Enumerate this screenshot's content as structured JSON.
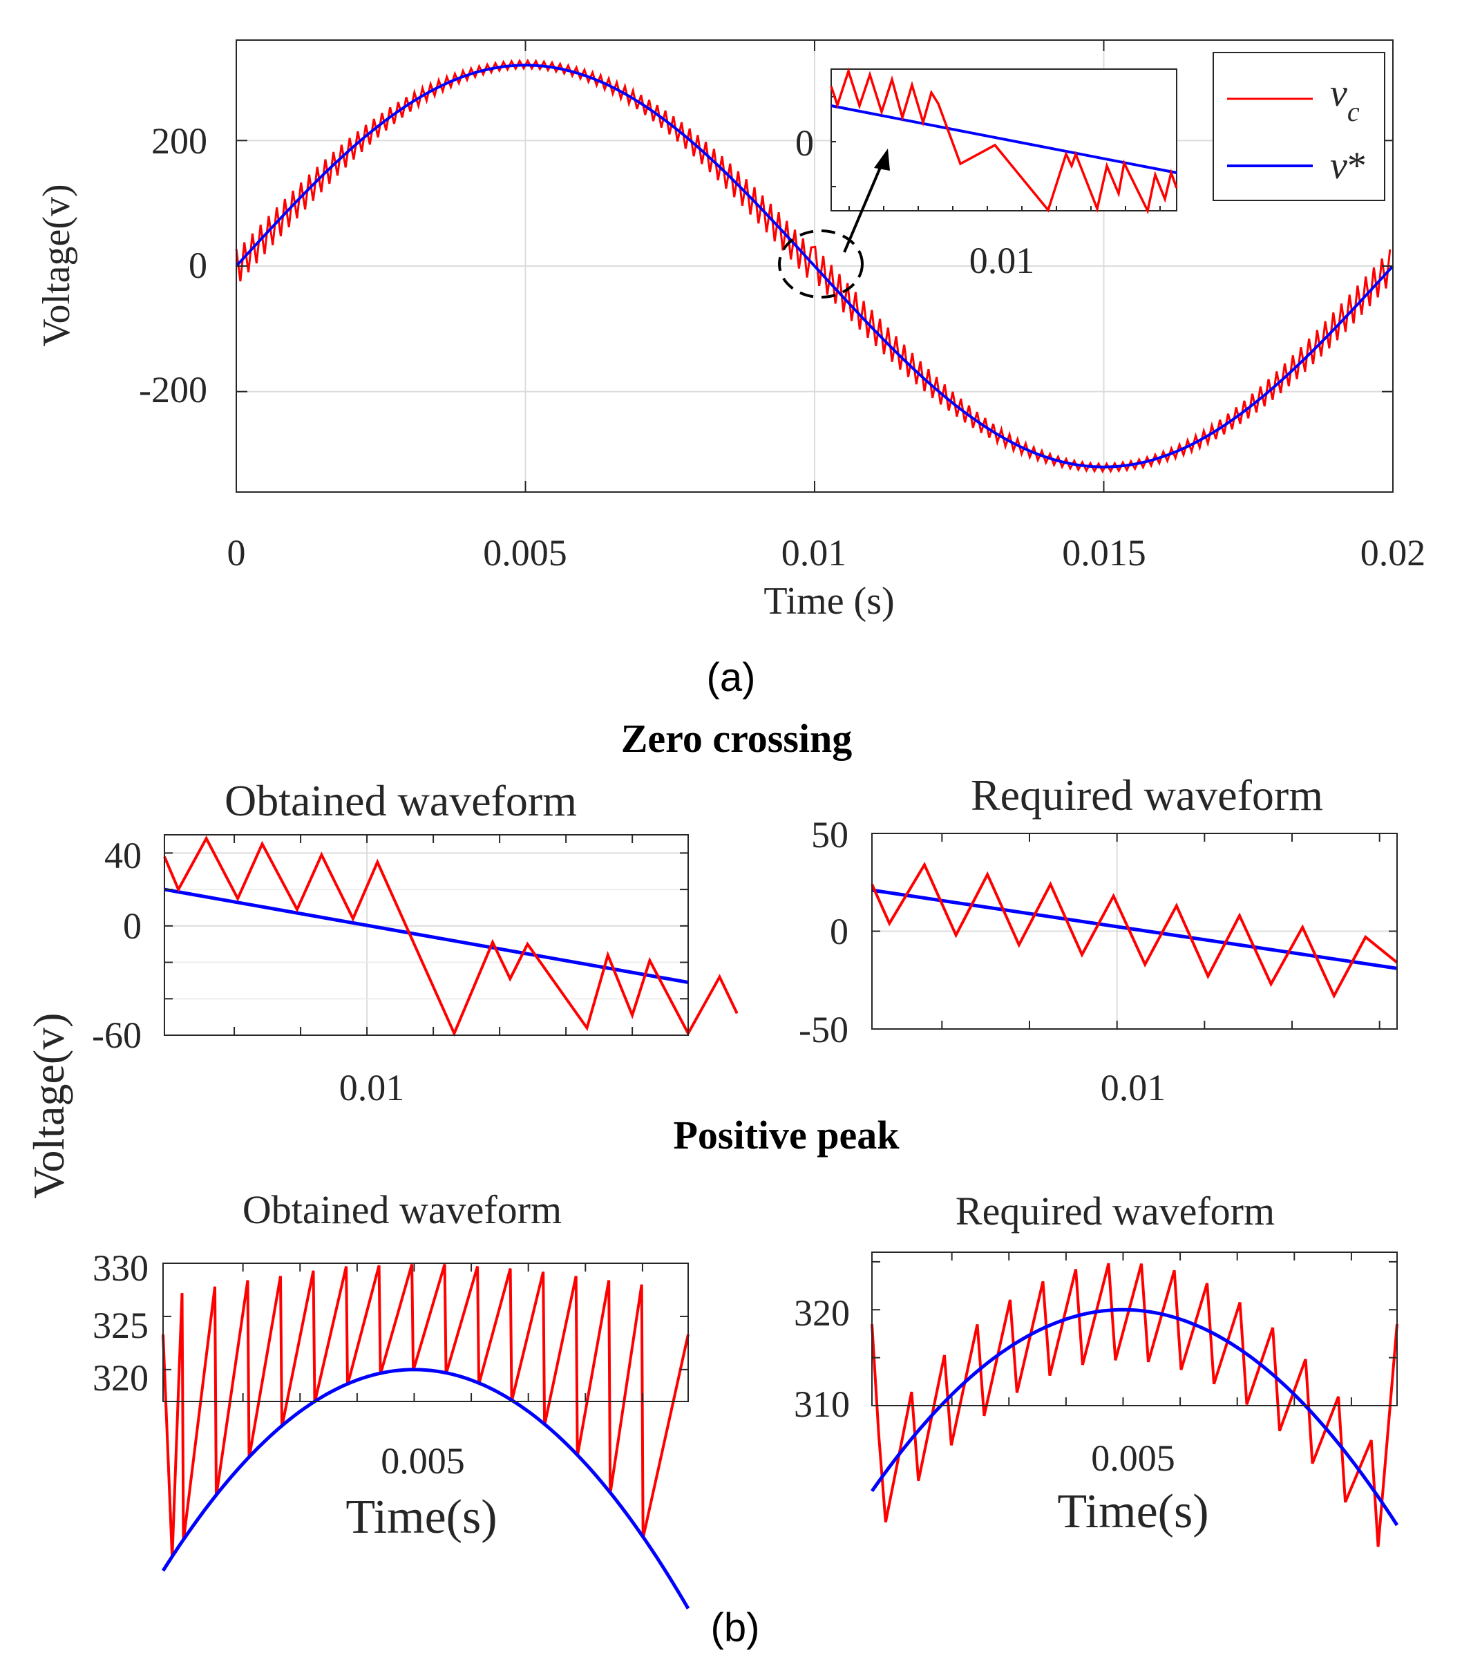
{
  "captions": {
    "a": "(a)",
    "b": "(b)"
  },
  "section_titles": {
    "zero": "Zero crossing",
    "peak": "Positive peak"
  },
  "shared_ylabel": "Voltage(v)",
  "colors": {
    "vc": "#ff0000",
    "vref": "#0000ff",
    "grid": "#dcdcdc",
    "axis": "#262626"
  },
  "chart_data": [
    {
      "id": "main",
      "type": "line",
      "title": "",
      "xlabel": "Time (s)",
      "ylabel": "Voltage(v)",
      "xlim": [
        0,
        0.02
      ],
      "ylim": [
        -360,
        360
      ],
      "xticks": [
        0,
        0.005,
        0.01,
        0.015,
        0.02
      ],
      "xtick_labels": [
        "0",
        "0.005",
        "0.01",
        "0.015",
        "0.02"
      ],
      "yticks": [
        -200,
        0,
        200
      ],
      "ytick_labels": [
        "-200",
        "0",
        "200"
      ],
      "grid": true,
      "legend_location": "top-right",
      "series": [
        {
          "name": "v_c",
          "label_main": "v",
          "label_sub": "c",
          "color": "#ff0000",
          "amplitude": 325,
          "frequency_hz": 50,
          "ripple_pp_zero_crossing": 55,
          "ripple_pp_peak": 12
        },
        {
          "name": "v*",
          "label_main": "v",
          "label_sub": "*",
          "color": "#0000ff",
          "amplitude": 320,
          "frequency_hz": 50
        }
      ],
      "inset": {
        "description": "zoom at zero crossing",
        "xtick_labels": [
          "0.01"
        ],
        "ytick_labels": [
          "0"
        ]
      }
    },
    {
      "id": "zero-obtained",
      "type": "line",
      "title": "Obtained waveform",
      "xlim": [
        0.0093,
        0.0108
      ],
      "ylim": [
        -60,
        50
      ],
      "xticks": [
        0.00988
      ],
      "xtick_labels": [
        "0.01"
      ],
      "yticks": [
        -60,
        0,
        40
      ],
      "ytick_labels": [
        "-60",
        "0",
        "40"
      ],
      "grid": true,
      "series": [
        {
          "name": "v_c",
          "color": "#ff0000",
          "points": [
            [
              0.0093,
              38
            ],
            [
              0.00934,
              20
            ],
            [
              0.00942,
              48
            ],
            [
              0.00951,
              15
            ],
            [
              0.00958,
              45
            ],
            [
              0.00968,
              9
            ],
            [
              0.00975,
              39
            ],
            [
              0.00984,
              4
            ],
            [
              0.00991,
              35
            ],
            [
              0.01013,
              -59
            ],
            [
              0.01024,
              -9
            ],
            [
              0.01029,
              -29
            ],
            [
              0.01034,
              -10
            ],
            [
              0.01051,
              -56
            ],
            [
              0.01057,
              -16
            ],
            [
              0.01064,
              -49
            ],
            [
              0.01069,
              -19
            ],
            [
              0.0108,
              -59
            ],
            [
              0.01089,
              -28
            ],
            [
              0.01094,
              -48
            ],
            [
              0.0108,
              -59
            ]
          ]
        },
        {
          "name": "v*",
          "color": "#0000ff",
          "points": [
            [
              0.0093,
              20
            ],
            [
              0.0108,
              -31
            ]
          ]
        }
      ]
    },
    {
      "id": "zero-required",
      "type": "line",
      "title": "Required waveform",
      "xlim": [
        0.0093,
        0.0108
      ],
      "ylim": [
        -50,
        50
      ],
      "xticks": [
        0.01
      ],
      "xtick_labels": [
        "0.01"
      ],
      "yticks": [
        -50,
        0,
        50
      ],
      "ytick_labels": [
        "-50",
        "0",
        "50"
      ],
      "grid": true,
      "series": [
        {
          "name": "v_c",
          "color": "#ff0000",
          "points": [
            [
              0.0093,
              24
            ],
            [
              0.00935,
              4
            ],
            [
              0.00945,
              34
            ],
            [
              0.00954,
              -2
            ],
            [
              0.00963,
              29
            ],
            [
              0.00972,
              -7
            ],
            [
              0.00981,
              24
            ],
            [
              0.0099,
              -12
            ],
            [
              0.00999,
              18
            ],
            [
              0.01008,
              -17
            ],
            [
              0.01017,
              13
            ],
            [
              0.01026,
              -23
            ],
            [
              0.01035,
              8
            ],
            [
              0.01044,
              -27
            ],
            [
              0.01053,
              2
            ],
            [
              0.01062,
              -33
            ],
            [
              0.01071,
              -3
            ],
            [
              0.0108,
              -16
            ]
          ]
        },
        {
          "name": "v*",
          "color": "#0000ff",
          "points": [
            [
              0.0093,
              21
            ],
            [
              0.0108,
              -19
            ]
          ]
        }
      ]
    },
    {
      "id": "peak-obtained",
      "type": "line",
      "title": "Obtained waveform",
      "xlabel": "Time(s)",
      "xlim": [
        0.0039,
        0.0062
      ],
      "ylim": [
        317,
        330
      ],
      "xticks": [
        0.005
      ],
      "xtick_labels": [
        "0.005"
      ],
      "yticks": [
        320,
        325,
        330
      ],
      "ytick_labels": [
        "320",
        "325",
        "330"
      ],
      "grid": false,
      "series": [
        {
          "name": "v_c",
          "color": "#ff0000",
          "sawtooth_period_s": 0.0001438,
          "peak_values": [
            327.2,
            327.8,
            328.4,
            328.8,
            329.3,
            329.7,
            329.8,
            329.9,
            329.9,
            329.7,
            329.5,
            329.2,
            328.8,
            328.4,
            328.0
          ],
          "trough_offset": -0.1
        },
        {
          "name": "v*",
          "color": "#0000ff",
          "amplitude": 320,
          "center_time": 0.005,
          "frequency_hz": 50
        }
      ]
    },
    {
      "id": "peak-required",
      "type": "line",
      "title": "Required waveform",
      "xlabel": "Time(s)",
      "xlim": [
        0.0039,
        0.0062
      ],
      "ylim": [
        310,
        326
      ],
      "xticks": [
        0.005
      ],
      "xtick_labels": [
        "0.005"
      ],
      "yticks": [
        310,
        320
      ],
      "ytick_labels": [
        "310",
        "320"
      ],
      "grid": false,
      "series": [
        {
          "name": "v_c",
          "color": "#ff0000",
          "sawtooth_period_s": 0.0001438,
          "ripple_pp": 10.5,
          "ripple_offset": 4.5
        },
        {
          "name": "v*",
          "color": "#0000ff",
          "amplitude": 320,
          "center_time": 0.005,
          "frequency_hz": 50
        }
      ]
    }
  ]
}
